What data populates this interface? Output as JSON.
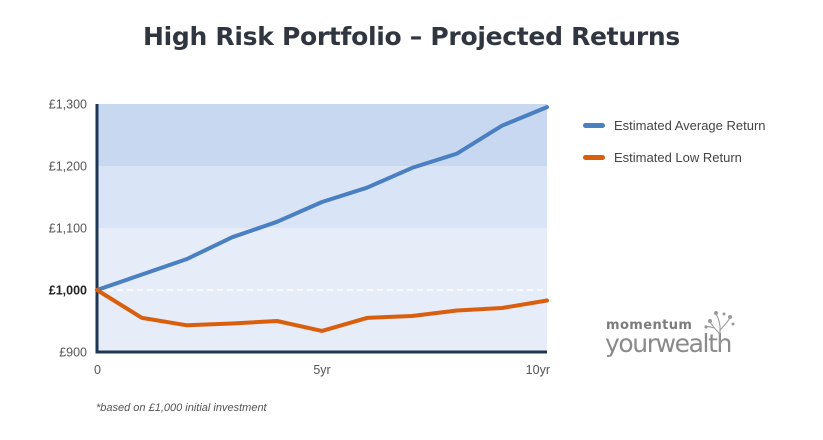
{
  "chart_data": {
    "type": "line",
    "title": "High Risk Portfolio – Projected Returns",
    "xlabel": "",
    "ylabel": "",
    "xlim": [
      0,
      10
    ],
    "ylim": [
      900,
      1300
    ],
    "x_ticks": [
      {
        "value": 0,
        "label": "0"
      },
      {
        "value": 5,
        "label": "5yr"
      },
      {
        "value": 10,
        "label": "10yr"
      }
    ],
    "y_ticks": [
      {
        "value": 1300,
        "label": "£1,300",
        "bold": false
      },
      {
        "value": 1200,
        "label": "£1,200",
        "bold": false
      },
      {
        "value": 1100,
        "label": "£1,100",
        "bold": false
      },
      {
        "value": 1000,
        "label": "£1,000",
        "bold": true
      },
      {
        "value": 900,
        "label": "£900",
        "bold": false
      }
    ],
    "reference_line": 1000,
    "bands": [
      {
        "from": 900,
        "to": 1100,
        "color": "#e6ecf8"
      },
      {
        "from": 1100,
        "to": 1200,
        "color": "#d9e4f6"
      },
      {
        "from": 1200,
        "to": 1300,
        "color": "#c8d8f1"
      }
    ],
    "x": [
      0,
      1,
      2,
      3,
      4,
      5,
      6,
      7,
      8,
      9,
      10
    ],
    "series": [
      {
        "name": "Estimated Average Return",
        "color": "#4a7fc1",
        "values": [
          1000,
          1025,
          1050,
          1085,
          1110,
          1142,
          1165,
          1197,
          1220,
          1265,
          1295
        ]
      },
      {
        "name": "Estimated Low Return",
        "color": "#d95f0e",
        "values": [
          1000,
          955,
          943,
          946,
          950,
          934,
          955,
          958,
          967,
          971,
          983
        ]
      }
    ],
    "legend_position": "right"
  },
  "footnote": "*based on £1,000 initial investment",
  "logo": {
    "top": "momentum",
    "bottom": "yourwealth"
  }
}
